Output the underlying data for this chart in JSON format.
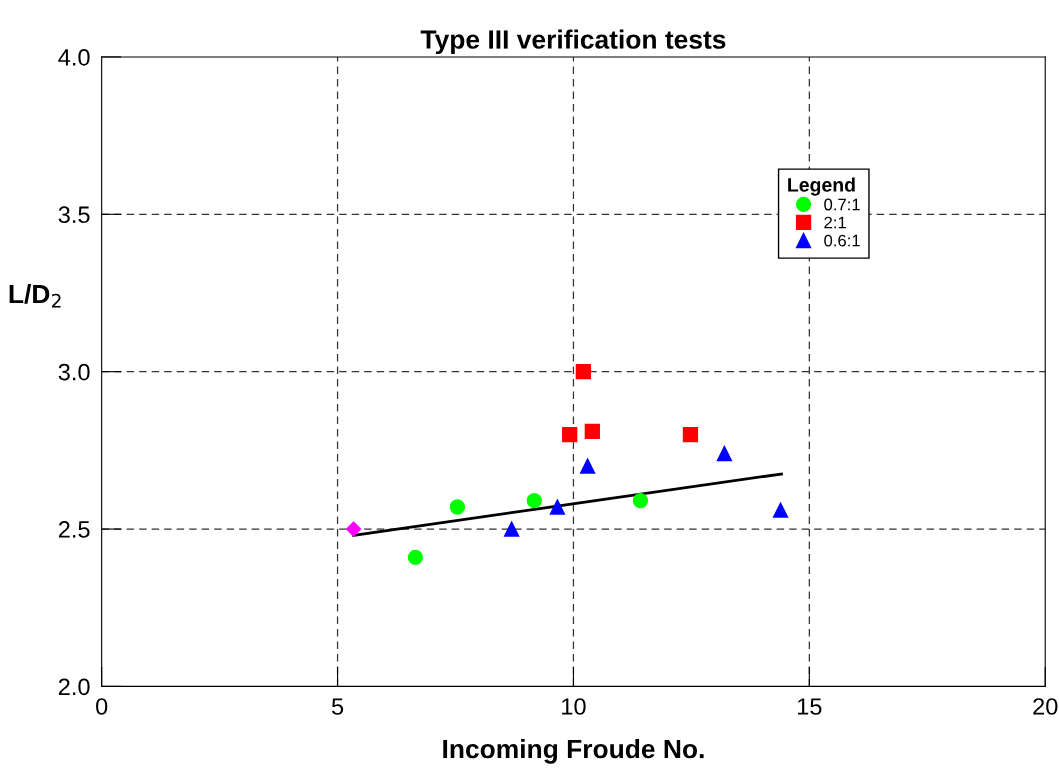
{
  "chart_data": {
    "type": "scatter",
    "title": "Type III verification tests",
    "xlabel": "Incoming Froude No.",
    "ylabel": "L/D$_{2}$",
    "legend_title": "Legend",
    "legend": "top right",
    "grid": true,
    "xlim": [
      0,
      20
    ],
    "xticks": [
      0,
      5,
      10,
      15,
      20
    ],
    "ylim": [
      2.0,
      4.0
    ],
    "yticks": [
      {
        "value": 2.0,
        "label": "2.0"
      },
      {
        "value": 2.5,
        "label": "2.5"
      },
      {
        "value": 3.0,
        "label": "3.0"
      },
      {
        "value": 3.5,
        "label": "3.5"
      },
      {
        "value": 4.0,
        "label": "4.0"
      }
    ],
    "series": [
      {
        "name": "0.7:1",
        "color": "#00ff00",
        "marker": "circle",
        "x": [
          6.65,
          7.54,
          9.17,
          11.42
        ],
        "values": [
          2.41,
          2.57,
          2.59,
          2.59
        ]
      },
      {
        "name": "2:1",
        "color": "#ff0000",
        "marker": "square",
        "x": [
          9.92,
          10.21,
          10.4,
          12.48
        ],
        "values": [
          2.8,
          3.0,
          2.81,
          2.8
        ]
      },
      {
        "name": "0.6:1",
        "color": "#0000ff",
        "marker": "triangle",
        "x": [
          8.69,
          9.66,
          10.3,
          13.2,
          14.39
        ],
        "values": [
          2.5,
          2.57,
          2.7,
          2.74,
          2.56
        ]
      },
      {
        "color": "#ff00ff",
        "marker": "diamond",
        "x": [
          5.34
        ],
        "values": [
          2.5
        ]
      },
      {
        "type": "line",
        "color": "#000000",
        "marker": "none",
        "x": [
          5.34,
          14.41
        ],
        "values": [
          2.48,
          2.675
        ]
      }
    ]
  }
}
